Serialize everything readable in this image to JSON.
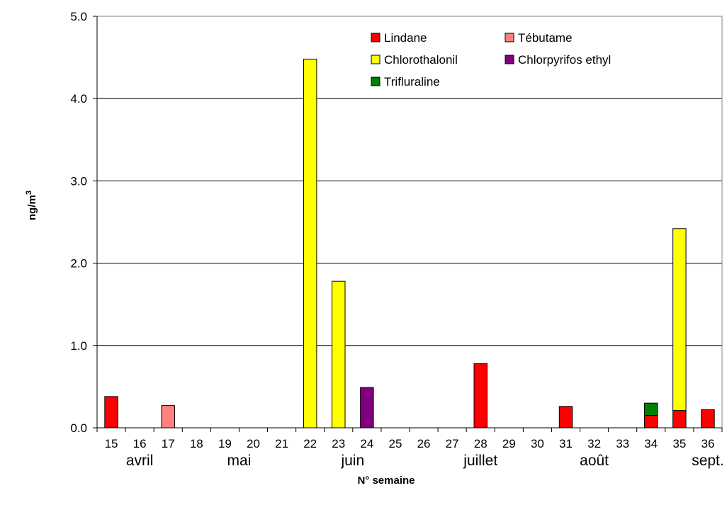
{
  "chart_data": {
    "type": "bar",
    "stacked": true,
    "xlabel": "N° semaine",
    "ylabel": "ng/m",
    "ylabel_superscript": "3",
    "ylim": [
      0,
      5
    ],
    "yticks": [
      "0.0",
      "1.0",
      "2.0",
      "3.0",
      "4.0",
      "5.0"
    ],
    "grid": true,
    "legend_position": "top-right",
    "categories": [
      "15",
      "16",
      "17",
      "18",
      "19",
      "20",
      "21",
      "22",
      "23",
      "24",
      "25",
      "26",
      "27",
      "28",
      "29",
      "30",
      "31",
      "32",
      "33",
      "34",
      "35",
      "36"
    ],
    "months": [
      {
        "label": "avril",
        "center_category": "16"
      },
      {
        "label": "mai",
        "center_category": "19.5"
      },
      {
        "label": "juin",
        "center_category": "23.5"
      },
      {
        "label": "juillet",
        "center_category": "28"
      },
      {
        "label": "août",
        "center_category": "32"
      },
      {
        "label": "sept.",
        "center_category": "36"
      }
    ],
    "series": [
      {
        "name": "Lindane",
        "color": "#ff0000",
        "values": [
          0.38,
          0,
          0,
          0,
          0,
          0,
          0,
          0,
          0,
          0,
          0,
          0,
          0,
          0.78,
          0,
          0,
          0.26,
          0,
          0,
          0.15,
          0.21,
          0.22
        ]
      },
      {
        "name": "Tébutame",
        "color": "#ff8080",
        "values": [
          0,
          0,
          0.27,
          0,
          0,
          0,
          0,
          0,
          0,
          0,
          0,
          0,
          0,
          0,
          0,
          0,
          0,
          0,
          0,
          0,
          0,
          0
        ]
      },
      {
        "name": "Chlorothalonil",
        "color": "#ffff00",
        "values": [
          0,
          0,
          0,
          0,
          0,
          0,
          0,
          4.48,
          1.78,
          0,
          0,
          0,
          0,
          0,
          0,
          0,
          0,
          0,
          0,
          0,
          2.21,
          0
        ]
      },
      {
        "name": "Chlorpyrifos ethyl",
        "color": "#800080",
        "values": [
          0,
          0,
          0,
          0,
          0,
          0,
          0,
          0,
          0,
          0.49,
          0,
          0,
          0,
          0,
          0,
          0,
          0,
          0,
          0,
          0,
          0,
          0
        ]
      },
      {
        "name": "Trifluraline",
        "color": "#008000",
        "values": [
          0,
          0,
          0,
          0,
          0,
          0,
          0,
          0,
          0,
          0,
          0,
          0,
          0,
          0,
          0,
          0,
          0,
          0,
          0,
          0.15,
          0,
          0
        ]
      }
    ]
  }
}
